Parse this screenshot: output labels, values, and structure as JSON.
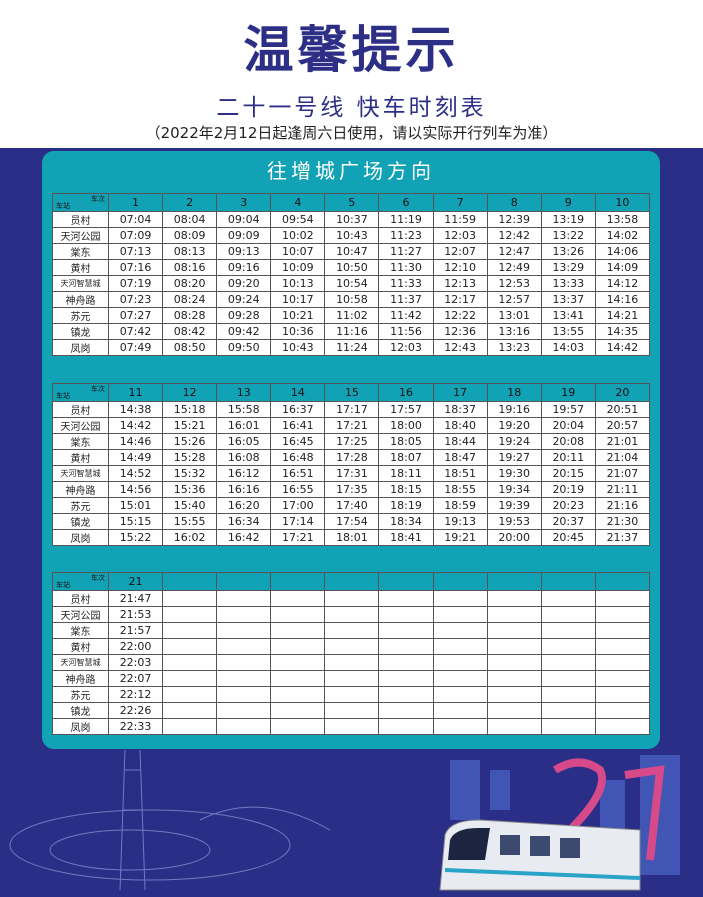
{
  "header": {
    "title": "温馨提示",
    "subtitle": "二十一号线 快车时刻表",
    "note": "（2022年2月12日起逢周六日使用，请以实际开行列车为准）"
  },
  "direction": "往增城广场方向",
  "corner": {
    "train": "车次",
    "station": "车站"
  },
  "stations": [
    "员村",
    "天河公园",
    "棠东",
    "黄村",
    "天河智慧城",
    "神舟路",
    "苏元",
    "镇龙",
    "凤岗"
  ],
  "tables": [
    {
      "trains": [
        "1",
        "2",
        "3",
        "4",
        "5",
        "6",
        "7",
        "8",
        "9",
        "10"
      ],
      "rows": [
        [
          "07:04",
          "08:04",
          "09:04",
          "09:54",
          "10:37",
          "11:19",
          "11:59",
          "12:39",
          "13:19",
          "13:58"
        ],
        [
          "07:09",
          "08:09",
          "09:09",
          "10:02",
          "10:43",
          "11:23",
          "12:03",
          "12:42",
          "13:22",
          "14:02"
        ],
        [
          "07:13",
          "08:13",
          "09:13",
          "10:07",
          "10:47",
          "11:27",
          "12:07",
          "12:47",
          "13:26",
          "14:06"
        ],
        [
          "07:16",
          "08:16",
          "09:16",
          "10:09",
          "10:50",
          "11:30",
          "12:10",
          "12:49",
          "13:29",
          "14:09"
        ],
        [
          "07:19",
          "08:20",
          "09:20",
          "10:13",
          "10:54",
          "11:33",
          "12:13",
          "12:53",
          "13:33",
          "14:12"
        ],
        [
          "07:23",
          "08:24",
          "09:24",
          "10:17",
          "10:58",
          "11:37",
          "12:17",
          "12:57",
          "13:37",
          "14:16"
        ],
        [
          "07:27",
          "08:28",
          "09:28",
          "10:21",
          "11:02",
          "11:42",
          "12:22",
          "13:01",
          "13:41",
          "14:21"
        ],
        [
          "07:42",
          "08:42",
          "09:42",
          "10:36",
          "11:16",
          "11:56",
          "12:36",
          "13:16",
          "13:55",
          "14:35"
        ],
        [
          "07:49",
          "08:50",
          "09:50",
          "10:43",
          "11:24",
          "12:03",
          "12:43",
          "13:23",
          "14:03",
          "14:42"
        ]
      ]
    },
    {
      "trains": [
        "11",
        "12",
        "13",
        "14",
        "15",
        "16",
        "17",
        "18",
        "19",
        "20"
      ],
      "rows": [
        [
          "14:38",
          "15:18",
          "15:58",
          "16:37",
          "17:17",
          "17:57",
          "18:37",
          "19:16",
          "19:57",
          "20:51"
        ],
        [
          "14:42",
          "15:21",
          "16:01",
          "16:41",
          "17:21",
          "18:00",
          "18:40",
          "19:20",
          "20:04",
          "20:57"
        ],
        [
          "14:46",
          "15:26",
          "16:05",
          "16:45",
          "17:25",
          "18:05",
          "18:44",
          "19:24",
          "20:08",
          "21:01"
        ],
        [
          "14:49",
          "15:28",
          "16:08",
          "16:48",
          "17:28",
          "18:07",
          "18:47",
          "19:27",
          "20:11",
          "21:04"
        ],
        [
          "14:52",
          "15:32",
          "16:12",
          "16:51",
          "17:31",
          "18:11",
          "18:51",
          "19:30",
          "20:15",
          "21:07"
        ],
        [
          "14:56",
          "15:36",
          "16:16",
          "16:55",
          "17:35",
          "18:15",
          "18:55",
          "19:34",
          "20:19",
          "21:11"
        ],
        [
          "15:01",
          "15:40",
          "16:20",
          "17:00",
          "17:40",
          "18:19",
          "18:59",
          "19:39",
          "20:23",
          "21:16"
        ],
        [
          "15:15",
          "15:55",
          "16:34",
          "17:14",
          "17:54",
          "18:34",
          "19:13",
          "19:53",
          "20:37",
          "21:30"
        ],
        [
          "15:22",
          "16:02",
          "16:42",
          "17:21",
          "18:01",
          "18:41",
          "19:21",
          "20:00",
          "20:45",
          "21:37"
        ]
      ]
    },
    {
      "trains": [
        "21",
        "",
        "",
        "",
        "",
        "",
        "",
        "",
        "",
        ""
      ],
      "rows": [
        [
          "21:47",
          "",
          "",
          "",
          "",
          "",
          "",
          "",
          "",
          ""
        ],
        [
          "21:53",
          "",
          "",
          "",
          "",
          "",
          "",
          "",
          "",
          ""
        ],
        [
          "21:57",
          "",
          "",
          "",
          "",
          "",
          "",
          "",
          "",
          ""
        ],
        [
          "22:00",
          "",
          "",
          "",
          "",
          "",
          "",
          "",
          "",
          ""
        ],
        [
          "22:03",
          "",
          "",
          "",
          "",
          "",
          "",
          "",
          "",
          ""
        ],
        [
          "22:07",
          "",
          "",
          "",
          "",
          "",
          "",
          "",
          "",
          ""
        ],
        [
          "22:12",
          "",
          "",
          "",
          "",
          "",
          "",
          "",
          "",
          ""
        ],
        [
          "22:26",
          "",
          "",
          "",
          "",
          "",
          "",
          "",
          "",
          ""
        ],
        [
          "22:33",
          "",
          "",
          "",
          "",
          "",
          "",
          "",
          "",
          ""
        ]
      ]
    }
  ],
  "colors": {
    "navy": "#2b2e86",
    "teal": "#12a2b5",
    "title": "#2d2f86"
  }
}
